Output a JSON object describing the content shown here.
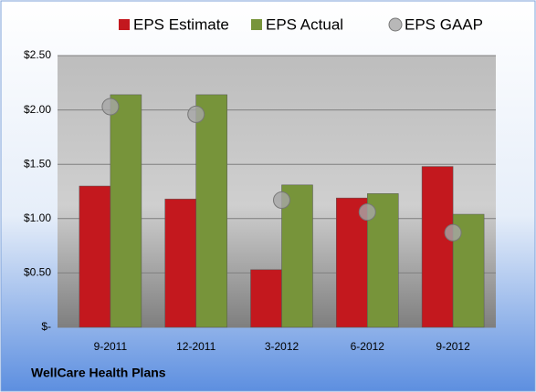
{
  "chart_data": {
    "type": "bar",
    "categories": [
      "9-2011",
      "12-2011",
      "3-2012",
      "6-2012",
      "9-2012"
    ],
    "series": [
      {
        "name": "EPS Estimate",
        "color": "#c3181e",
        "values": [
          1.3,
          1.18,
          0.53,
          1.19,
          1.48
        ]
      },
      {
        "name": "EPS Actual",
        "color": "#77943a",
        "values": [
          2.14,
          2.14,
          1.31,
          1.23,
          1.04
        ]
      },
      {
        "name": "EPS GAAP",
        "color": "#a6a6a6",
        "type": "scatter",
        "values": [
          2.03,
          1.96,
          1.17,
          1.06,
          0.87
        ]
      }
    ],
    "ylim": [
      0,
      2.5
    ],
    "yticks": [
      {
        "value": 0,
        "label": "$-"
      },
      {
        "value": 0.5,
        "label": "$0.50"
      },
      {
        "value": 1,
        "label": "$1.00"
      },
      {
        "value": 1.5,
        "label": "$1.50"
      },
      {
        "value": 2,
        "label": "$2.00"
      },
      {
        "value": 2.5,
        "label": "$2.50"
      }
    ],
    "grid": true,
    "legend": "top",
    "footnote": "WellCare Health Plans"
  }
}
